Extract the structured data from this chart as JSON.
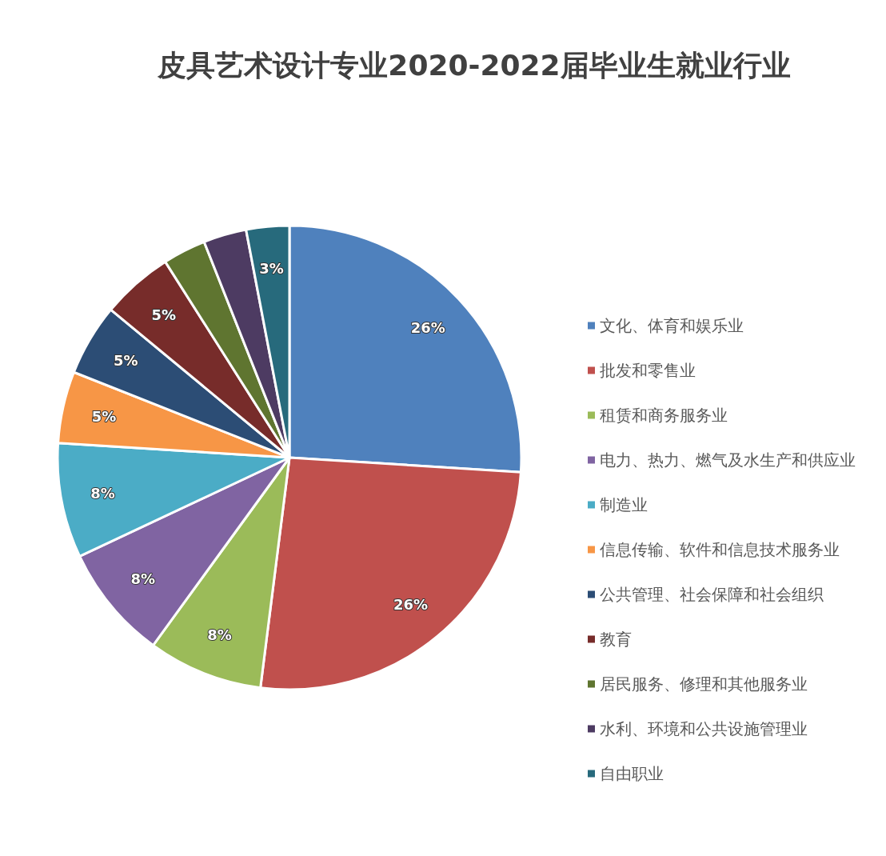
{
  "chart_data": {
    "type": "pie",
    "title": "皮具艺术设计专业2020-2022届毕业生就业行业",
    "categories": [
      "文化、体育和娱乐业",
      "批发和零售业",
      "租赁和商务服务业",
      "电力、热力、燃气及水生产和供应业",
      "制造业",
      "信息传输、软件和信息技术服务业",
      "公共管理、社会保障和社会组织",
      "教育",
      "居民服务、修理和其他服务业",
      "水利、环境和公共设施管理业",
      "自由职业"
    ],
    "values": [
      26,
      26,
      8,
      8,
      8,
      5,
      5,
      5,
      3,
      3,
      3
    ],
    "value_labels": [
      "26%",
      "26%",
      "8%",
      "8%",
      "8%",
      "5%",
      "5%",
      "5%",
      null,
      null,
      "3%"
    ],
    "colors": [
      "#4f81bd",
      "#c0504d",
      "#9bbb59",
      "#8064a2",
      "#4bacc6",
      "#f79646",
      "#2c4d75",
      "#772c2a",
      "#5f7530",
      "#4d3b62",
      "#276a7c"
    ],
    "legend": "right"
  }
}
